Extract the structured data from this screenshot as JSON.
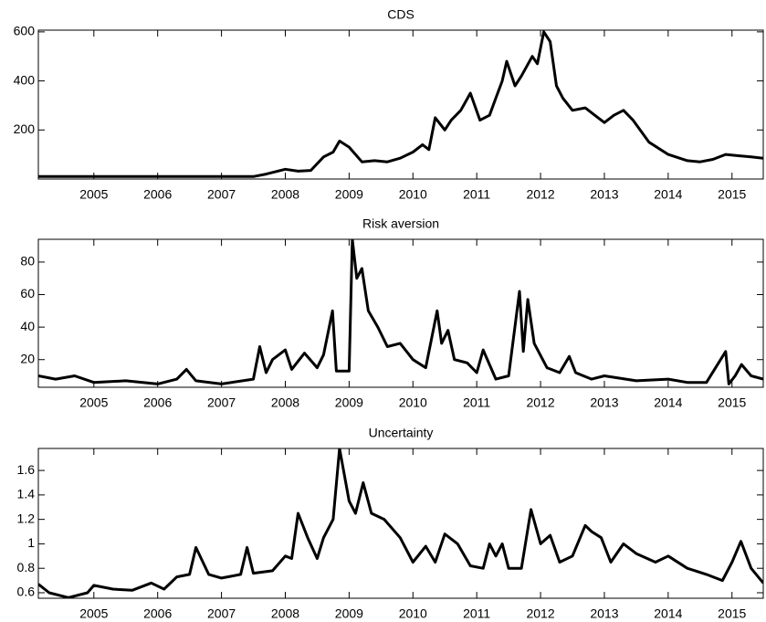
{
  "chart_data": [
    {
      "type": "line",
      "title": "CDS",
      "color": "#000000",
      "x": [
        2004.13,
        2007.5,
        2007.7,
        2008.0,
        2008.2,
        2008.4,
        2008.6,
        2008.75,
        2008.85,
        2009.0,
        2009.2,
        2009.4,
        2009.6,
        2009.8,
        2010.0,
        2010.15,
        2010.25,
        2010.35,
        2010.5,
        2010.6,
        2010.75,
        2010.9,
        2011.05,
        2011.2,
        2011.3,
        2011.4,
        2011.47,
        2011.6,
        2011.7,
        2011.87,
        2011.95,
        2012.05,
        2012.15,
        2012.25,
        2012.35,
        2012.5,
        2012.7,
        2012.85,
        2013.0,
        2013.15,
        2013.3,
        2013.45,
        2013.7,
        2014.0,
        2014.3,
        2014.5,
        2014.7,
        2014.9,
        2015.1,
        2015.3,
        2015.49
      ],
      "values": [
        10,
        10,
        20,
        40,
        32,
        35,
        90,
        110,
        155,
        130,
        70,
        75,
        70,
        85,
        110,
        140,
        120,
        250,
        200,
        240,
        280,
        350,
        240,
        260,
        330,
        400,
        480,
        380,
        420,
        500,
        470,
        600,
        560,
        380,
        330,
        280,
        290,
        260,
        230,
        260,
        280,
        240,
        150,
        100,
        75,
        70,
        80,
        100,
        95,
        90,
        85
      ],
      "xlim": [
        2004.13,
        2015.49
      ],
      "ylim": [
        0,
        607
      ],
      "xticks": [
        2005,
        2006,
        2007,
        2008,
        2009,
        2010,
        2011,
        2012,
        2013,
        2014,
        2015
      ],
      "yticks": [
        200,
        400,
        600
      ]
    },
    {
      "type": "line",
      "title": "Risk aversion",
      "color": "#000000",
      "x": [
        2004.13,
        2004.4,
        2004.7,
        2005.0,
        2005.5,
        2006.0,
        2006.3,
        2006.45,
        2006.6,
        2007.0,
        2007.5,
        2007.6,
        2007.7,
        2007.8,
        2008.0,
        2008.1,
        2008.3,
        2008.5,
        2008.6,
        2008.74,
        2008.8,
        2009.0,
        2009.05,
        2009.12,
        2009.2,
        2009.3,
        2009.45,
        2009.6,
        2009.8,
        2010.0,
        2010.2,
        2010.38,
        2010.45,
        2010.55,
        2010.65,
        2010.85,
        2011.0,
        2011.1,
        2011.3,
        2011.5,
        2011.67,
        2011.73,
        2011.8,
        2011.9,
        2012.1,
        2012.3,
        2012.45,
        2012.55,
        2012.8,
        2013.0,
        2013.5,
        2014.0,
        2014.3,
        2014.6,
        2014.9,
        2014.95,
        2015.05,
        2015.15,
        2015.3,
        2015.49
      ],
      "values": [
        10,
        8,
        10,
        6,
        7,
        5,
        8,
        14,
        7,
        5,
        8,
        28,
        12,
        20,
        26,
        14,
        24,
        15,
        23,
        50,
        13,
        13,
        94,
        70,
        76,
        50,
        40,
        28,
        30,
        20,
        15,
        50,
        30,
        38,
        20,
        18,
        12,
        26,
        8,
        10,
        62,
        25,
        57,
        30,
        15,
        12,
        22,
        12,
        8,
        10,
        7,
        8,
        6,
        6,
        25,
        5,
        10,
        17,
        10,
        8
      ],
      "xlim": [
        2004.13,
        2015.49
      ],
      "ylim": [
        3,
        94
      ],
      "xticks": [
        2005,
        2006,
        2007,
        2008,
        2009,
        2010,
        2011,
        2012,
        2013,
        2014,
        2015
      ],
      "yticks": [
        20,
        40,
        60,
        80
      ]
    },
    {
      "type": "line",
      "title": "Uncertainty",
      "color": "#000000",
      "x": [
        2004.13,
        2004.3,
        2004.6,
        2004.9,
        2005.0,
        2005.3,
        2005.6,
        2005.9,
        2006.1,
        2006.3,
        2006.5,
        2006.6,
        2006.8,
        2007.0,
        2007.3,
        2007.4,
        2007.5,
        2007.8,
        2008.0,
        2008.1,
        2008.2,
        2008.35,
        2008.5,
        2008.6,
        2008.75,
        2008.85,
        2009.0,
        2009.1,
        2009.22,
        2009.35,
        2009.55,
        2009.8,
        2010.0,
        2010.2,
        2010.35,
        2010.5,
        2010.7,
        2010.9,
        2011.1,
        2011.2,
        2011.3,
        2011.4,
        2011.5,
        2011.7,
        2011.85,
        2012.0,
        2012.15,
        2012.3,
        2012.5,
        2012.7,
        2012.8,
        2012.95,
        2013.1,
        2013.3,
        2013.5,
        2013.8,
        2014.0,
        2014.3,
        2014.6,
        2014.85,
        2015.0,
        2015.14,
        2015.3,
        2015.49
      ],
      "values": [
        0.67,
        0.6,
        0.56,
        0.6,
        0.66,
        0.63,
        0.62,
        0.68,
        0.63,
        0.73,
        0.75,
        0.97,
        0.75,
        0.72,
        0.75,
        0.97,
        0.76,
        0.78,
        0.9,
        0.88,
        1.25,
        1.05,
        0.88,
        1.05,
        1.2,
        1.78,
        1.35,
        1.25,
        1.5,
        1.25,
        1.2,
        1.05,
        0.85,
        0.98,
        0.85,
        1.08,
        1.0,
        0.82,
        0.8,
        1.0,
        0.9,
        1.0,
        0.8,
        0.8,
        1.28,
        1.0,
        1.07,
        0.85,
        0.9,
        1.15,
        1.1,
        1.05,
        0.85,
        1.0,
        0.92,
        0.85,
        0.9,
        0.8,
        0.75,
        0.7,
        0.85,
        1.02,
        0.8,
        0.68
      ],
      "xlim": [
        2004.13,
        2015.49
      ],
      "ylim": [
        0.555,
        1.78
      ],
      "xticks": [
        2005,
        2006,
        2007,
        2008,
        2009,
        2010,
        2011,
        2012,
        2013,
        2014,
        2015
      ],
      "yticks": [
        0.6,
        0.8,
        1,
        1.2,
        1.4,
        1.6
      ]
    }
  ]
}
